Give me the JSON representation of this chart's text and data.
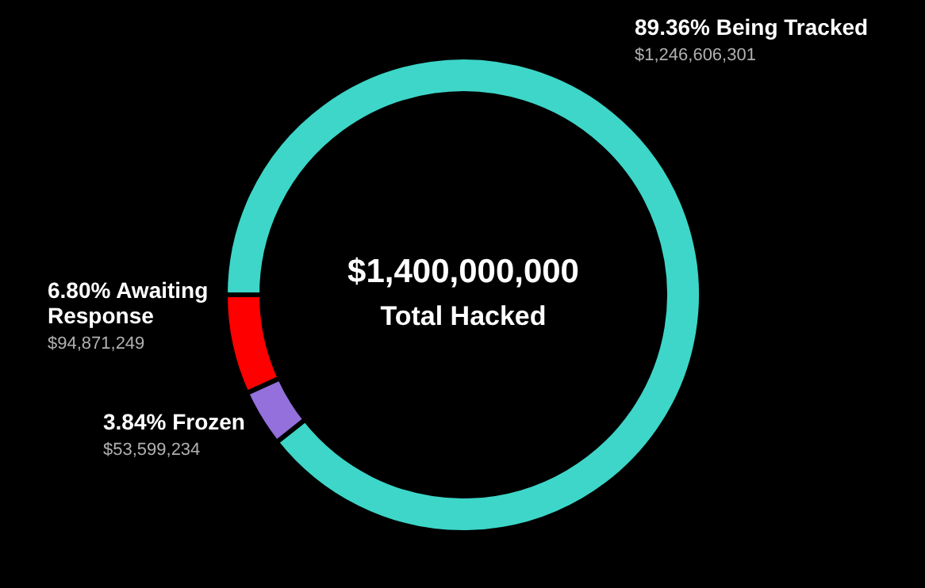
{
  "chart_data": {
    "type": "donut",
    "title": "$1,400,000,000",
    "subtitle": "Total Hacked",
    "categories": [
      "89.36% Being Tracked",
      "6.80% Awaiting Response",
      "3.84% Frozen"
    ],
    "values": [
      1246606301,
      94871249,
      53599234
    ],
    "value_labels": [
      "$1,246,606,301",
      "$94,871,249",
      "$53,599,234"
    ],
    "colors": [
      "#3dd6c8",
      "#ff0000",
      "#9370db"
    ]
  }
}
